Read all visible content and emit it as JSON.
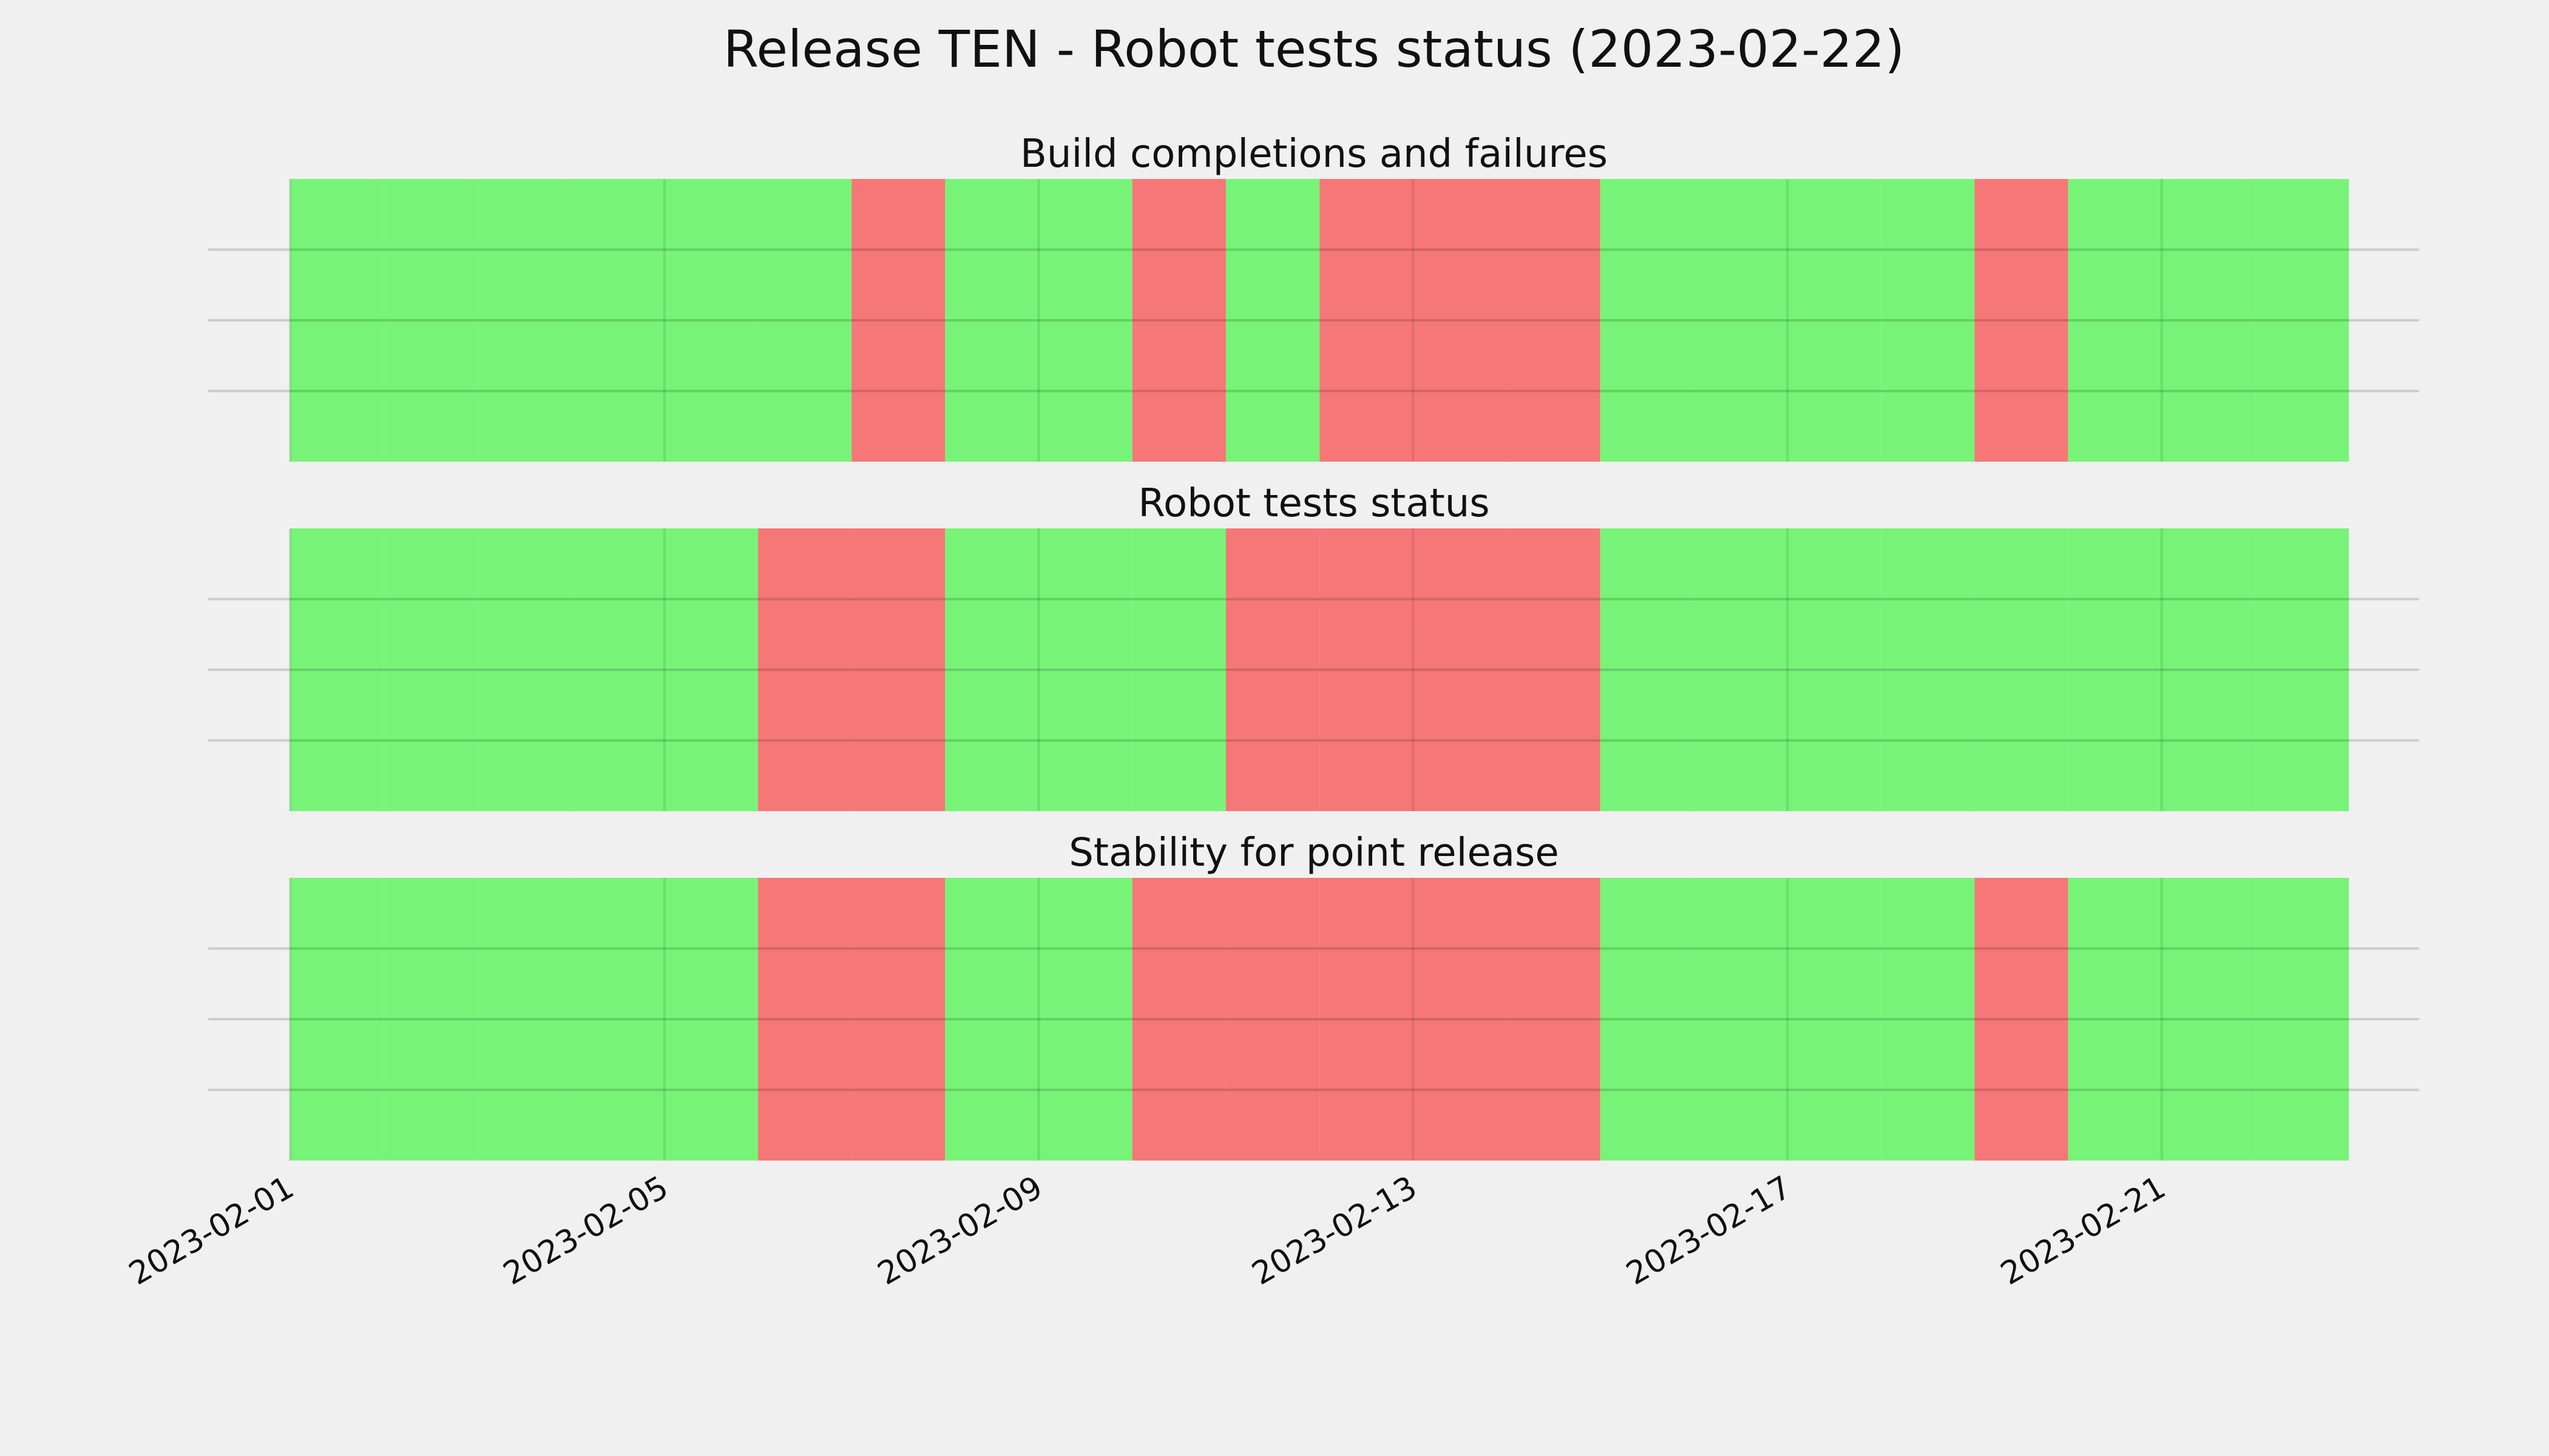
{
  "title": "Release TEN - Robot tests status (2023-02-22)",
  "chart_data": [
    {
      "type": "status",
      "title": "Build completions and failures",
      "x": [
        "2023-02-01",
        "2023-02-02",
        "2023-02-03",
        "2023-02-04",
        "2023-02-05",
        "2023-02-06",
        "2023-02-07",
        "2023-02-08",
        "2023-02-09",
        "2023-02-10",
        "2023-02-11",
        "2023-02-12",
        "2023-02-13",
        "2023-02-14",
        "2023-02-15",
        "2023-02-16",
        "2023-02-17",
        "2023-02-18",
        "2023-02-19",
        "2023-02-20",
        "2023-02-21",
        "2023-02-22"
      ],
      "values": [
        1,
        1,
        1,
        1,
        1,
        1,
        0,
        1,
        1,
        0,
        1,
        0,
        0,
        0,
        1,
        1,
        1,
        1,
        0,
        1,
        1,
        1
      ],
      "pass_color": "#77f477",
      "fail_color": "#f67777",
      "xlim": [
        "2023-01-31T03:00",
        "2023-02-23T18:00"
      ],
      "ylim": [
        0,
        1
      ],
      "yticks": [
        0.25,
        0.5,
        0.75
      ],
      "grid": true
    },
    {
      "type": "status",
      "title": "Robot tests status",
      "x": [
        "2023-02-01",
        "2023-02-02",
        "2023-02-03",
        "2023-02-04",
        "2023-02-05",
        "2023-02-06",
        "2023-02-07",
        "2023-02-08",
        "2023-02-09",
        "2023-02-10",
        "2023-02-11",
        "2023-02-12",
        "2023-02-13",
        "2023-02-14",
        "2023-02-15",
        "2023-02-16",
        "2023-02-17",
        "2023-02-18",
        "2023-02-19",
        "2023-02-20",
        "2023-02-21",
        "2023-02-22"
      ],
      "values": [
        1,
        1,
        1,
        1,
        1,
        0,
        0,
        1,
        1,
        1,
        0,
        0,
        0,
        0,
        1,
        1,
        1,
        1,
        1,
        1,
        1,
        1
      ],
      "pass_color": "#77f477",
      "fail_color": "#f67777",
      "xlim": [
        "2023-01-31T03:00",
        "2023-02-23T18:00"
      ],
      "ylim": [
        0,
        1
      ],
      "yticks": [
        0.25,
        0.5,
        0.75
      ],
      "grid": true
    },
    {
      "type": "status",
      "title": "Stability for point release",
      "x": [
        "2023-02-01",
        "2023-02-02",
        "2023-02-03",
        "2023-02-04",
        "2023-02-05",
        "2023-02-06",
        "2023-02-07",
        "2023-02-08",
        "2023-02-09",
        "2023-02-10",
        "2023-02-11",
        "2023-02-12",
        "2023-02-13",
        "2023-02-14",
        "2023-02-15",
        "2023-02-16",
        "2023-02-17",
        "2023-02-18",
        "2023-02-19",
        "2023-02-20",
        "2023-02-21",
        "2023-02-22"
      ],
      "values": [
        1,
        1,
        1,
        1,
        1,
        0,
        0,
        1,
        1,
        0,
        0,
        0,
        0,
        0,
        1,
        1,
        1,
        1,
        0,
        1,
        1,
        1
      ],
      "pass_color": "#77f477",
      "fail_color": "#f67777",
      "xlim": [
        "2023-01-31T03:00",
        "2023-02-23T18:00"
      ],
      "ylim": [
        0,
        1
      ],
      "yticks": [
        0.25,
        0.5,
        0.75
      ],
      "grid": true,
      "xticks": [
        "2023-02-01",
        "2023-02-05",
        "2023-02-09",
        "2023-02-13",
        "2023-02-17",
        "2023-02-21"
      ]
    }
  ]
}
